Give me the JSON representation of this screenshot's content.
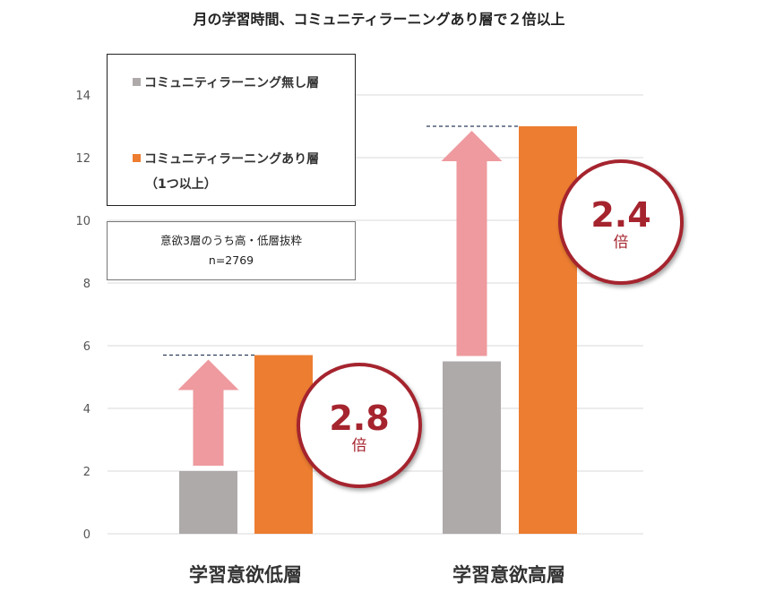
{
  "chart_data": {
    "type": "bar",
    "title": "月の学習時間、コミュニティラーニングあり層で２倍以上",
    "categories": [
      "学習意欲低層",
      "学習意欲高層"
    ],
    "series": [
      {
        "name": "コミュニティラーニング無し層",
        "values": [
          2.0,
          5.5
        ],
        "color": "#aeaaaa"
      },
      {
        "name": "コミュニティラーニングあり層",
        "values": [
          5.7,
          13.0
        ],
        "color": "#ed7d31"
      }
    ],
    "legend_subtext": "（1つ以上）",
    "yticks": [
      0,
      2,
      4,
      6,
      8,
      10,
      12,
      14
    ],
    "ylim": [
      0,
      15
    ],
    "grid": true,
    "legend_position": "top-left",
    "note": {
      "line1": "意欲3層のうち高・低層抜粋",
      "line2": "n=2769"
    },
    "annotations": [
      {
        "category": "学習意欲低層",
        "value": "2.8",
        "suffix": "倍"
      },
      {
        "category": "学習意欲高層",
        "value": "2.4",
        "suffix": "倍"
      }
    ],
    "arrow_color": "#ee9a9e",
    "badge_color": "#a5242e"
  }
}
